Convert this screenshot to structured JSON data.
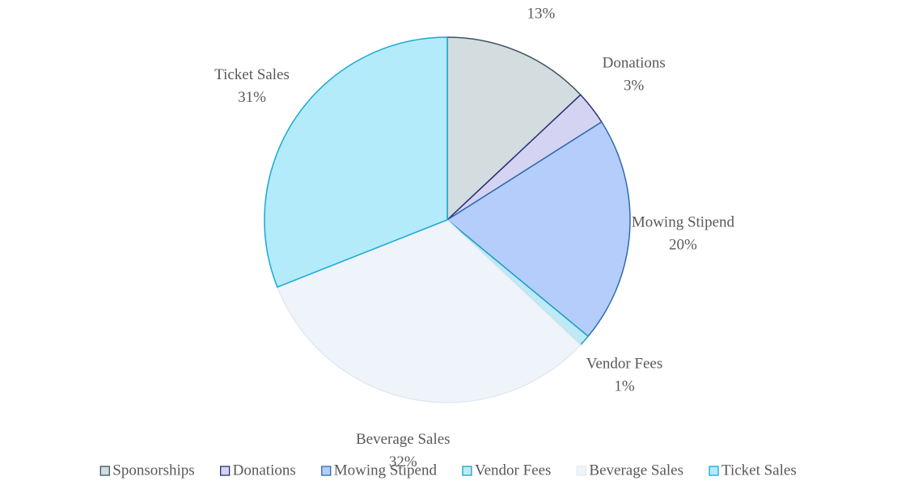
{
  "chart_data": {
    "type": "pie",
    "categories": [
      "Sponsorships",
      "Donations",
      "Mowing Stipend",
      "Vendor Fees",
      "Beverage Sales",
      "Ticket Sales"
    ],
    "values": [
      13,
      3,
      20,
      1,
      32,
      31
    ],
    "value_labels": [
      "13%",
      "3%",
      "20%",
      "1%",
      "32%",
      "31%"
    ],
    "colors": [
      "#d3dcdf",
      "#d4d4f2",
      "#b4cdfa",
      "#bfe9f5",
      "#eff4fa",
      "#b3ebfb"
    ],
    "edge_colors": [
      "#3b5560",
      "#2a2f7a",
      "#2e6bb0",
      "#1aa0c8",
      "#e2e9f1",
      "#18a8d8"
    ],
    "legend": "bottom"
  }
}
